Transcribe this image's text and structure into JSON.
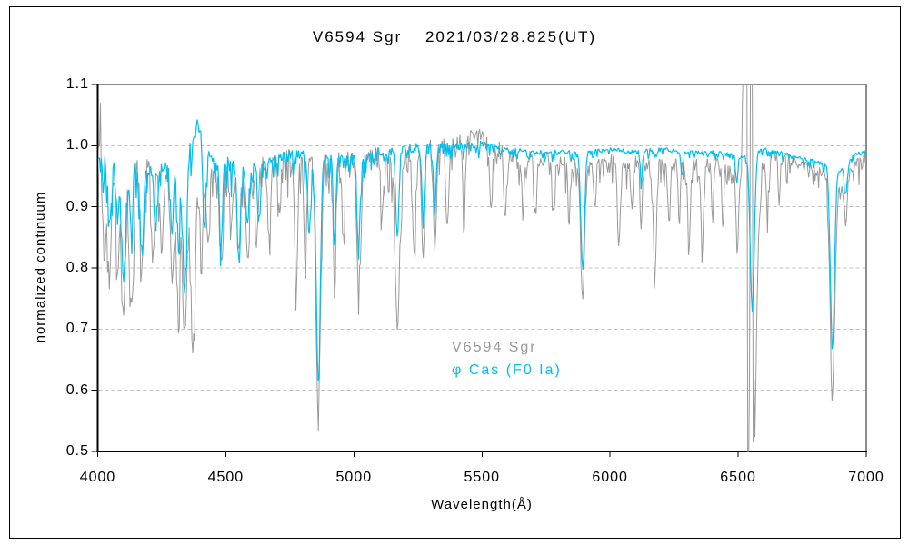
{
  "chart_data": {
    "type": "line",
    "title": "V6594 Sgr　 2021/03/28.825(UT)",
    "xlabel": "Wavelength(Å)",
    "ylabel": "normalized continuum",
    "xlim": [
      4000,
      7000
    ],
    "ylim": [
      0.5,
      1.1
    ],
    "xticks": [
      "4000",
      "4500",
      "5000",
      "5500",
      "6000",
      "6500",
      "7000"
    ],
    "yticks": [
      {
        "label": "1.1",
        "value": 1.1
      },
      {
        "label": "1.0",
        "value": 1.0
      },
      {
        "label": "0.9",
        "value": 0.9
      },
      {
        "label": "0.8",
        "value": 0.8
      },
      {
        "label": "0.7",
        "value": 0.7
      },
      {
        "label": "0.6",
        "value": 0.6
      },
      {
        "label": "0.5",
        "value": 0.5
      }
    ],
    "grid_values": [
      1.0,
      0.9,
      0.8,
      0.7,
      0.6
    ],
    "grid_on": true,
    "grid_color": "#c3c3c3",
    "frame_color": "#8c8c8c",
    "axis_color": "#000000",
    "legend_position": "inside-lower-center",
    "legend": [
      {
        "label": "V6594 Sgr",
        "color": "#9a9a9a"
      },
      {
        "label": "φ Cas (F0 Ia)",
        "color": "#00bfef"
      }
    ],
    "series": [
      {
        "name": "V6594 Sgr",
        "color": "#9a9a9a",
        "stroke_width": 1,
        "seed": 20210328,
        "continuum": [
          [
            4000,
            0.99
          ],
          [
            4006,
            0.98
          ],
          [
            4010,
            1.08
          ],
          [
            4014,
            0.97
          ],
          [
            4060,
            0.99
          ],
          [
            4150,
            0.975
          ],
          [
            4250,
            0.965
          ],
          [
            4350,
            0.965
          ],
          [
            4430,
            0.97
          ],
          [
            4500,
            0.975
          ],
          [
            4600,
            0.975
          ],
          [
            4700,
            0.98
          ],
          [
            4800,
            0.985
          ],
          [
            4900,
            0.985
          ],
          [
            5000,
            0.98
          ],
          [
            5100,
            0.985
          ],
          [
            5200,
            0.99
          ],
          [
            5300,
            1.0
          ],
          [
            5400,
            1.01
          ],
          [
            5470,
            1.02
          ],
          [
            5550,
            1.0
          ],
          [
            5650,
            0.985
          ],
          [
            5750,
            0.98
          ],
          [
            5850,
            0.975
          ],
          [
            5950,
            0.98
          ],
          [
            6050,
            0.975
          ],
          [
            6150,
            0.975
          ],
          [
            6250,
            0.975
          ],
          [
            6350,
            0.975
          ],
          [
            6450,
            0.975
          ],
          [
            6510,
            0.97
          ],
          [
            6600,
            0.985
          ],
          [
            6700,
            0.98
          ],
          [
            6800,
            0.97
          ],
          [
            6860,
            0.95
          ],
          [
            6900,
            0.93
          ],
          [
            6950,
            0.97
          ],
          [
            7000,
            0.99
          ]
        ],
        "absorption_lines": [
          [
            4026,
            0.82,
            6
          ],
          [
            4046,
            0.78,
            7
          ],
          [
            4077,
            0.8,
            6
          ],
          [
            4101,
            0.72,
            8
          ],
          [
            4132,
            0.73,
            7
          ],
          [
            4172,
            0.8,
            7
          ],
          [
            4215,
            0.83,
            6
          ],
          [
            4250,
            0.84,
            6
          ],
          [
            4290,
            0.79,
            7
          ],
          [
            4315,
            0.76,
            7
          ],
          [
            4340,
            0.7,
            8
          ],
          [
            4372,
            0.67,
            9
          ],
          [
            4405,
            0.81,
            6
          ],
          [
            4430,
            0.83,
            6
          ],
          [
            4481,
            0.82,
            7
          ],
          [
            4520,
            0.86,
            5
          ],
          [
            4550,
            0.83,
            7
          ],
          [
            4584,
            0.82,
            6
          ],
          [
            4620,
            0.85,
            6
          ],
          [
            4668,
            0.86,
            6
          ],
          [
            4710,
            0.89,
            5
          ],
          [
            4775,
            0.78,
            6
          ],
          [
            4810,
            0.81,
            5
          ],
          [
            4861,
            0.57,
            9
          ],
          [
            4924,
            0.8,
            6
          ],
          [
            4958,
            0.86,
            5
          ],
          [
            5018,
            0.77,
            7
          ],
          [
            5110,
            0.88,
            5
          ],
          [
            5170,
            0.71,
            9
          ],
          [
            5235,
            0.83,
            6
          ],
          [
            5270,
            0.82,
            6
          ],
          [
            5316,
            0.83,
            6
          ],
          [
            5365,
            0.87,
            5
          ],
          [
            5430,
            0.88,
            5
          ],
          [
            5535,
            0.89,
            5
          ],
          [
            5590,
            0.89,
            5
          ],
          [
            5660,
            0.9,
            5
          ],
          [
            5710,
            0.89,
            5
          ],
          [
            5780,
            0.9,
            5
          ],
          [
            5840,
            0.89,
            5
          ],
          [
            5893,
            0.755,
            8
          ],
          [
            5940,
            0.9,
            4
          ],
          [
            6035,
            0.85,
            6
          ],
          [
            6085,
            0.89,
            4
          ],
          [
            6122,
            0.88,
            4
          ],
          [
            6175,
            0.79,
            6
          ],
          [
            6230,
            0.88,
            5
          ],
          [
            6270,
            0.87,
            4
          ],
          [
            6308,
            0.845,
            5
          ],
          [
            6360,
            0.84,
            5
          ],
          [
            6400,
            0.88,
            4
          ],
          [
            6440,
            0.87,
            4
          ],
          [
            6497,
            0.825,
            5
          ],
          [
            6614,
            0.89,
            4
          ],
          [
            6660,
            0.91,
            4
          ],
          [
            6868,
            0.6,
            9
          ],
          [
            6920,
            0.88,
            6
          ]
        ],
        "halpha_profile": [
          [
            6508,
            0.94
          ],
          [
            6514,
            0.96
          ],
          [
            6518,
            1.13
          ],
          [
            6534,
            1.13
          ],
          [
            6536,
            0.47
          ],
          [
            6544,
            0.47
          ],
          [
            6546,
            1.13
          ],
          [
            6556,
            1.13
          ],
          [
            6558,
            0.5
          ],
          [
            6562,
            0.62
          ],
          [
            6566,
            0.51
          ],
          [
            6572,
            0.7
          ],
          [
            6580,
            0.86
          ],
          [
            6590,
            0.92
          ]
        ],
        "noise_profile": [
          [
            4000,
            0.03
          ],
          [
            4600,
            0.027
          ],
          [
            5000,
            0.026
          ],
          [
            5500,
            0.024
          ],
          [
            5800,
            0.018
          ],
          [
            6300,
            0.016
          ],
          [
            7000,
            0.014
          ]
        ]
      },
      {
        "name": "φ Cas (F0 Ia)",
        "color": "#00bfef",
        "stroke_width": 1.2,
        "seed": 825,
        "continuum": [
          [
            4000,
            0.99
          ],
          [
            4040,
            0.97
          ],
          [
            4090,
            0.96
          ],
          [
            4150,
            0.97
          ],
          [
            4200,
            0.96
          ],
          [
            4260,
            0.97
          ],
          [
            4310,
            0.96
          ],
          [
            4360,
            1.0
          ],
          [
            4390,
            1.035
          ],
          [
            4420,
            0.99
          ],
          [
            4470,
            0.975
          ],
          [
            4520,
            0.97
          ],
          [
            4570,
            0.96
          ],
          [
            4620,
            0.97
          ],
          [
            4700,
            0.98
          ],
          [
            4800,
            0.99
          ],
          [
            4900,
            0.985
          ],
          [
            5000,
            0.985
          ],
          [
            5100,
            0.99
          ],
          [
            5200,
            0.995
          ],
          [
            5300,
            1.0
          ],
          [
            5400,
            1.0
          ],
          [
            5500,
            1.005
          ],
          [
            5600,
            0.995
          ],
          [
            5700,
            0.99
          ],
          [
            5800,
            0.99
          ],
          [
            5900,
            0.99
          ],
          [
            6000,
            0.995
          ],
          [
            6100,
            0.99
          ],
          [
            6200,
            0.995
          ],
          [
            6300,
            0.99
          ],
          [
            6400,
            0.99
          ],
          [
            6500,
            0.985
          ],
          [
            6600,
            0.995
          ],
          [
            6700,
            0.985
          ],
          [
            6800,
            0.975
          ],
          [
            6900,
            0.96
          ],
          [
            6950,
            0.985
          ],
          [
            7000,
            0.99
          ]
        ],
        "absorption_lines": [
          [
            4046,
            0.87,
            6
          ],
          [
            4077,
            0.88,
            5
          ],
          [
            4101,
            0.78,
            7
          ],
          [
            4132,
            0.86,
            5
          ],
          [
            4172,
            0.83,
            6
          ],
          [
            4226,
            0.86,
            5
          ],
          [
            4290,
            0.86,
            5
          ],
          [
            4315,
            0.85,
            5
          ],
          [
            4340,
            0.77,
            7
          ],
          [
            4416,
            0.86,
            5
          ],
          [
            4481,
            0.85,
            6
          ],
          [
            4550,
            0.83,
            6
          ],
          [
            4584,
            0.87,
            5
          ],
          [
            4630,
            0.88,
            5
          ],
          [
            4825,
            0.85,
            5
          ],
          [
            4861,
            0.625,
            8
          ],
          [
            4924,
            0.84,
            5
          ],
          [
            5018,
            0.83,
            6
          ],
          [
            5170,
            0.85,
            6
          ],
          [
            5270,
            0.88,
            5
          ],
          [
            5316,
            0.885,
            4
          ],
          [
            5893,
            0.8,
            7
          ],
          [
            6122,
            0.945,
            4
          ],
          [
            6280,
            0.95,
            4
          ],
          [
            6495,
            0.945,
            4
          ],
          [
            6555,
            0.73,
            8
          ],
          [
            6868,
            0.67,
            8
          ],
          [
            6920,
            0.92,
            5
          ]
        ],
        "noise_profile": [
          [
            4000,
            0.022
          ],
          [
            4800,
            0.018
          ],
          [
            5300,
            0.012
          ],
          [
            5600,
            0.006
          ],
          [
            7000,
            0.005
          ]
        ]
      }
    ]
  }
}
